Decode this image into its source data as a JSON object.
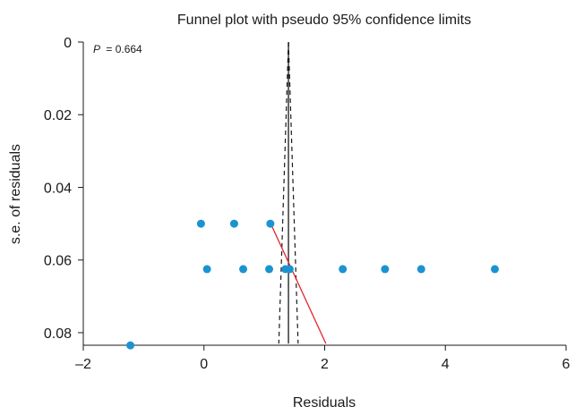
{
  "chart_data": {
    "type": "scatter",
    "title": "Funnel plot with pseudo 95% confidence limits",
    "xlabel": "Residuals",
    "ylabel": "s.e. of residuals",
    "xlim": [
      -2,
      6
    ],
    "ylim": [
      0,
      0.085
    ],
    "y_reversed": true,
    "grid": false,
    "xticks": [
      -2,
      0,
      2,
      4,
      6
    ],
    "xtick_labels": [
      "–2",
      "0",
      "2",
      "4",
      "6"
    ],
    "yticks": [
      0,
      0.02,
      0.04,
      0.06,
      0.08
    ],
    "ytick_labels": [
      "0",
      "0.02",
      "0.04",
      "0.06",
      "0.08"
    ],
    "annotation": {
      "label": "P",
      "value": "= 0.664"
    },
    "points": [
      {
        "x": -0.05,
        "y": 0.05
      },
      {
        "x": 0.5,
        "y": 0.05
      },
      {
        "x": 1.1,
        "y": 0.05
      },
      {
        "x": 0.05,
        "y": 0.0625
      },
      {
        "x": 0.65,
        "y": 0.0625
      },
      {
        "x": 1.08,
        "y": 0.0625
      },
      {
        "x": 1.35,
        "y": 0.0625
      },
      {
        "x": 1.42,
        "y": 0.0625
      },
      {
        "x": 2.3,
        "y": 0.0625
      },
      {
        "x": 3.0,
        "y": 0.0625
      },
      {
        "x": 3.6,
        "y": 0.0625
      },
      {
        "x": 4.82,
        "y": 0.0625
      },
      {
        "x": -1.22,
        "y": 0.0835
      }
    ],
    "pooled_estimate": 1.4,
    "ci_limits": {
      "left": [
        {
          "x": 1.4,
          "y": 0
        },
        {
          "x": 1.24,
          "y": 0.083
        }
      ],
      "right": [
        {
          "x": 1.4,
          "y": 0
        },
        {
          "x": 1.56,
          "y": 0.083
        }
      ]
    },
    "regression_line": [
      {
        "x": 1.12,
        "y": 0.0505
      },
      {
        "x": 2.02,
        "y": 0.083
      }
    ],
    "colors": {
      "points": "#1b93d1",
      "regression": "#e3262e",
      "lines": "#1a1a1a"
    }
  }
}
